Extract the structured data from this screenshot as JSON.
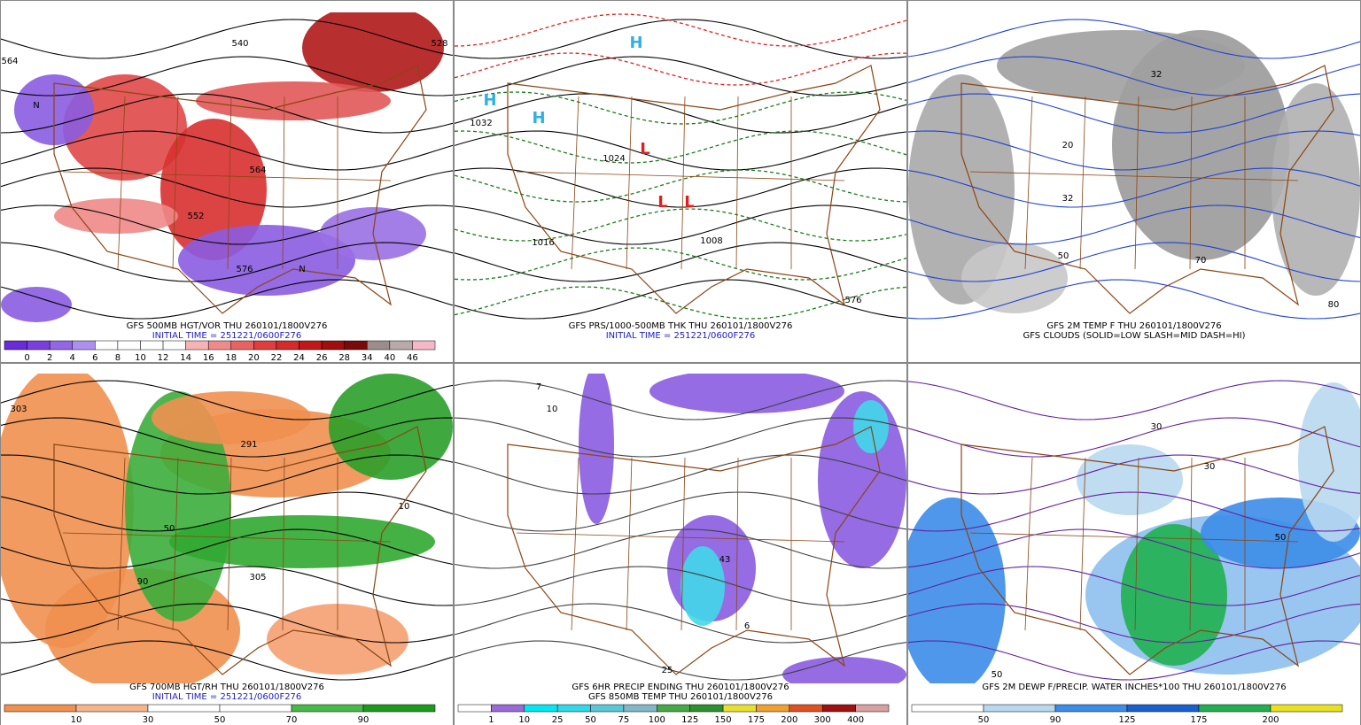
{
  "panels": [
    {
      "captions": [
        "GFS 500MB HGT/VOR THU 260101/1800V276",
        "INITIAL TIME = 251221/0600F276"
      ],
      "map_labels": [
        "564",
        "552",
        "540",
        "528",
        "564",
        "576",
        "N",
        "N"
      ],
      "colorbar": {
        "labels": [
          0,
          2,
          4,
          6,
          8,
          10,
          12,
          14,
          16,
          18,
          20,
          22,
          24,
          26,
          28,
          34,
          40,
          46
        ],
        "colors": [
          "#6a2bd8",
          "#7b3fe0",
          "#9266e6",
          "#ad8ff0",
          "#ffffff",
          "#ffffff",
          "#ffffff",
          "#ffffff",
          "#f7b3b3",
          "#f08a8a",
          "#e86262",
          "#e03c3c",
          "#d42a2a",
          "#c01818",
          "#a00e0e",
          "#7a0a0a",
          "#9c8c8c",
          "#b9a9a9",
          "#f4b8c8"
        ]
      }
    },
    {
      "captions": [
        "GFS PRS/1000-500MB THK THU 260101/1800V276",
        "INITIAL TIME = 251221/0600F276"
      ],
      "map_labels": [
        "H",
        "H",
        "H",
        "L",
        "L",
        "L",
        "1032",
        "1016",
        "1008",
        "1024",
        "576"
      ]
    },
    {
      "captions": [
        "GFS 2M TEMP F THU 260101/1800V276",
        "GFS CLOUDS (SOLID=LOW SLASH=MID DASH=HI)"
      ],
      "map_labels": [
        "32",
        "32",
        "20",
        "50",
        "70",
        "80"
      ]
    },
    {
      "captions": [
        "GFS 700MB HGT/RH THU 260101/1800V276",
        "INITIAL TIME = 251221/0600F276"
      ],
      "map_labels": [
        "303",
        "291",
        "50",
        "90",
        "10",
        "305"
      ],
      "colorbar": {
        "labels": [
          10,
          30,
          50,
          70,
          90
        ],
        "colors": [
          "#f09050",
          "#f5b58a",
          "#ffffff",
          "#ffffff",
          "#48b848",
          "#1e9a1e"
        ]
      }
    },
    {
      "captions": [
        "GFS 6HR PRECIP ENDING THU 260101/1800V276",
        "GFS 850MB TEMP THU 260101/1800V276"
      ],
      "map_labels": [
        "43",
        "7",
        "10",
        "25",
        "6"
      ],
      "colorbar": {
        "labels": [
          1,
          10,
          25,
          50,
          75,
          100,
          125,
          150,
          175,
          200,
          300,
          400
        ],
        "colors": [
          "#ffffff",
          "#9a6ad8",
          "#00e8f0",
          "#30d8e8",
          "#58c8d8",
          "#80b8c8",
          "#46a846",
          "#2d8f2d",
          "#e8e030",
          "#f0a030",
          "#e05020",
          "#a01010",
          "#d8a0a0"
        ]
      }
    },
    {
      "captions": [
        "GFS 2M DEWP F/PRECIP. WATER INCHES*100 THU 260101/1800V276"
      ],
      "map_labels": [
        "30",
        "30",
        "50",
        "50"
      ],
      "colorbar": {
        "labels": [
          50,
          90,
          125,
          175,
          200
        ],
        "colors": [
          "#ffffff",
          "#b8d8f0",
          "#3c8ce8",
          "#1860d0",
          "#20b050",
          "#e8e020"
        ]
      }
    }
  ],
  "subtitle_color": "#2020c0"
}
